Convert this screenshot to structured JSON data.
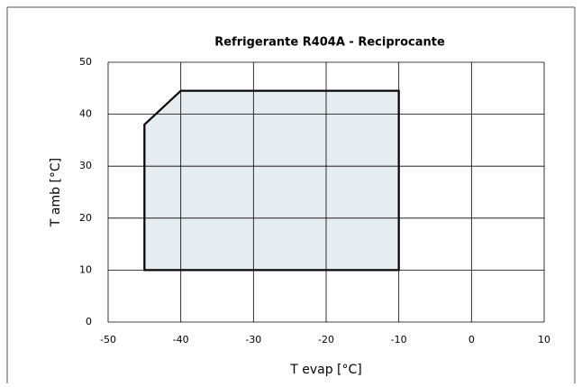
{
  "chart_data": {
    "type": "area",
    "title": "Refrigerante R404A - Reciprocante",
    "xlabel": "T evap [°C]",
    "ylabel": "T amb [°C]",
    "x": [
      -45,
      -45,
      -40,
      -10,
      -10
    ],
    "values": [
      10,
      38,
      44.5,
      44.5,
      10
    ],
    "color": "#e6edf0",
    "line_color": "#000000",
    "xlim": [
      -50,
      10
    ],
    "xticks": [
      -50,
      -40,
      -30,
      -20,
      -10,
      0,
      10
    ],
    "ylim": [
      0,
      50
    ],
    "yticks": [
      0,
      10,
      20,
      30,
      40,
      50
    ],
    "grid": true
  }
}
